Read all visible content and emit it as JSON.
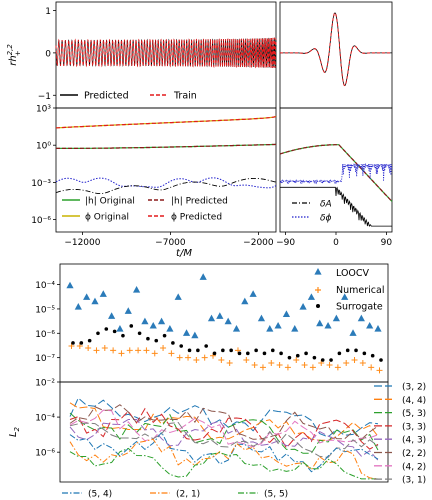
{
  "colors": {
    "predicted": "#000000",
    "train": "#e41a1c",
    "amp_orig": "#2ca02c",
    "amp_pred": "#8b1a1a",
    "phase_orig": "#c8b400",
    "phase_pred": "#e41a1c",
    "dA": "#000000",
    "dphi": "#1f1fcc",
    "loocv": "#2b7bb9",
    "numerical": "#ff8c1a",
    "surrogate": "#000000"
  },
  "chart_data": [
    {
      "id": "waveform",
      "type": "line",
      "ylabel": "rh+2,2",
      "ylabel_main": "rh",
      "ylabel_sup": "2,2",
      "ylabel_sub": "+",
      "ylim": [
        -1.3,
        1.2
      ],
      "yticks": [
        "1",
        "0",
        "−1"
      ],
      "legend": [
        "Predicted",
        "Train"
      ],
      "legend_position": "lower-center",
      "series": [
        {
          "name": "Predicted",
          "style": "solid"
        },
        {
          "name": "Train",
          "style": "dashed"
        }
      ],
      "left_x_range": [
        -13500,
        -1000
      ],
      "right_x_range": [
        -100,
        100
      ],
      "inspiral_amplitude": 0.3,
      "merger_peak_amplitude": 1.0
    },
    {
      "id": "amplitude_phase",
      "type": "line",
      "yscale": "log",
      "ylim": [
        1e-07,
        1000.0
      ],
      "yticks": [
        "10³",
        "10⁰",
        "10⁻³",
        "10⁻⁶"
      ],
      "xlabel": "t/M",
      "xticks_left": [
        "−12000",
        "−7000",
        "−2000"
      ],
      "xtick_values_left": [
        -12000,
        -7000,
        -2000
      ],
      "xticks_right": [
        "−90",
        "0",
        "90"
      ],
      "xtick_values_right": [
        -90,
        0,
        90
      ],
      "legend": [
        "|h| Original",
        "|h| Predicted",
        "ϕ Original",
        "ϕ Predicted",
        "δA",
        "δϕ"
      ],
      "legend_position": "lower",
      "series": [
        {
          "name": "|h| Original",
          "style": "solid",
          "level": 1.0
        },
        {
          "name": "|h| Predicted",
          "style": "dashed",
          "level": 1.0
        },
        {
          "name": "ϕ Original",
          "style": "solid",
          "start": 20,
          "end": 200
        },
        {
          "name": "ϕ Predicted",
          "style": "dashed",
          "start": 20,
          "end": 200
        },
        {
          "name": "δA",
          "style": "dashdot",
          "level": 0.0005
        },
        {
          "name": "δϕ",
          "style": "dotted",
          "level": 0.0003
        }
      ]
    },
    {
      "id": "loocv_errors",
      "type": "scatter",
      "yscale": "log",
      "ylim": [
        1e-08,
        0.0007
      ],
      "yticks": [
        "10⁻⁴",
        "10⁻⁵",
        "10⁻⁶",
        "10⁻⁷"
      ],
      "legend": [
        "LOOCV",
        "Numerical",
        "Surrogate"
      ],
      "legend_position": "upper-right",
      "n_points": 38,
      "series": [
        {
          "name": "LOOCV",
          "marker": "triangle",
          "values": [
            9e-05,
            1.2e-05,
            3e-05,
            2e-05,
            4e-05,
            5e-06,
            1.5e-06,
            8e-06,
            6e-05,
            3e-06,
            2e-06,
            3e-06,
            1.5e-06,
            3e-05,
            1e-06,
            8e-07,
            0.0002,
            4e-06,
            5e-06,
            3e-06,
            1.5e-06,
            2e-05,
            4e-05,
            4e-06,
            1.5e-06,
            2e-06,
            6e-06,
            1.5e-06,
            1.2e-05,
            3e-05,
            2.5e-06,
            2e-06,
            4e-06,
            3e-05,
            1e-06,
            4e-06,
            2e-06,
            1.5e-06
          ]
        },
        {
          "name": "Numerical",
          "marker": "plus",
          "values": [
            3e-07,
            3e-07,
            2.5e-07,
            2e-07,
            2.5e-07,
            2e-07,
            1.5e-07,
            2e-07,
            2e-07,
            2e-07,
            1.5e-07,
            2.5e-07,
            1.5e-07,
            1e-07,
            1e-07,
            8e-08,
            1e-07,
            1.2e-07,
            8e-08,
            6e-08,
            2e-07,
            8e-08,
            5e-08,
            4e-08,
            6e-08,
            5e-08,
            4e-08,
            8e-08,
            5e-08,
            4e-08,
            6e-08,
            5e-08,
            4e-08,
            6e-08,
            8e-08,
            6e-08,
            4e-08,
            3e-08
          ]
        },
        {
          "name": "Surrogate",
          "marker": "dot",
          "values": [
            4e-07,
            4e-07,
            5e-07,
            1e-06,
            1.5e-06,
            1.2e-06,
            8e-07,
            2e-06,
            1e-06,
            6e-07,
            5e-07,
            8e-07,
            4e-07,
            3e-07,
            2e-07,
            2e-07,
            3e-07,
            1.5e-07,
            2e-07,
            2e-07,
            1.5e-07,
            1.5e-07,
            2e-07,
            1.5e-07,
            2e-07,
            1.5e-07,
            1e-07,
            1.2e-07,
            1.5e-07,
            1e-07,
            8e-08,
            8e-08,
            1.5e-07,
            2e-07,
            2e-07,
            1.5e-07,
            1.2e-07,
            8e-08
          ]
        }
      ]
    },
    {
      "id": "mode_errors",
      "type": "line",
      "yscale": "log",
      "ylim": [
        2e-08,
        0.01
      ],
      "ylabel": "L2",
      "ylabel_main": "L",
      "ylabel_sub": "2",
      "yticks": [
        "10⁻²",
        "10⁻⁴",
        "10⁻⁶"
      ],
      "legend_position": "right-and-bottom",
      "series": [
        {
          "name": "(3, 2)",
          "color": "#1f77b4",
          "dash": "8,3"
        },
        {
          "name": "(4, 4)",
          "color": "#ff7f0e",
          "dash": "8,3"
        },
        {
          "name": "(5, 3)",
          "color": "#2ca02c",
          "dash": "8,3"
        },
        {
          "name": "(3, 3)",
          "color": "#d62728",
          "dash": "8,3"
        },
        {
          "name": "(4, 3)",
          "color": "#9467bd",
          "dash": "8,3"
        },
        {
          "name": "(2, 2)",
          "color": "#8c564b",
          "dash": "8,3"
        },
        {
          "name": "(4, 2)",
          "color": "#e377c2",
          "dash": "8,3"
        },
        {
          "name": "(3, 1)",
          "color": "#7f7f7f",
          "dash": "8,3"
        },
        {
          "name": "(5, 4)",
          "color": "#1f77b4",
          "dash": "6,2,1.5,2"
        },
        {
          "name": "(2, 1)",
          "color": "#ff7f0e",
          "dash": "6,2,1.5,2"
        },
        {
          "name": "(5, 5)",
          "color": "#2ca02c",
          "dash": "6,2,1.5,2"
        }
      ]
    }
  ]
}
